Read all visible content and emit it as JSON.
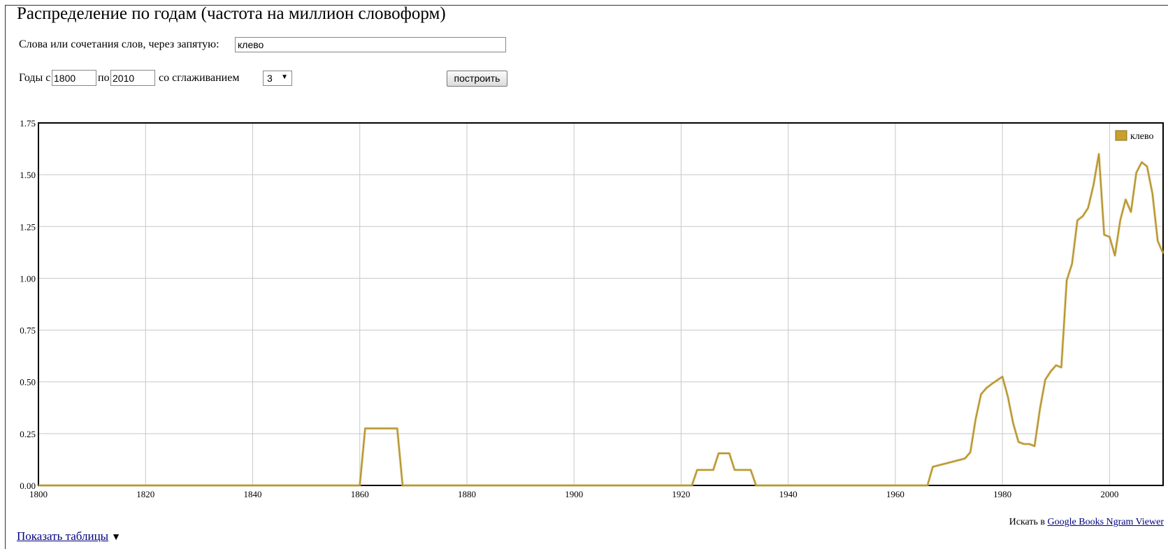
{
  "page": {
    "title": "Распределение по годам (частота на миллион словоформ)"
  },
  "form": {
    "words_label": "Слова или сочетания слов, через запятую:",
    "words_value": "клево",
    "years_from_label": "Годы с",
    "year_from": "1800",
    "years_to_label": "по",
    "year_to": "2010",
    "smoothing_label": "со сглаживанием",
    "smoothing_value": "3",
    "build_button": "построить"
  },
  "footer": {
    "search_prefix": "Искать в",
    "search_link": "Google Books Ngram Viewer",
    "show_tables": "Показать таблицы"
  },
  "colors": {
    "series": "#b8962e",
    "legend_box": "#c9a02a",
    "grid": "#c8c8c8",
    "axis": "#000000"
  },
  "chart_data": {
    "type": "line",
    "title": "",
    "xlabel": "",
    "ylabel": "",
    "xlim": [
      1800,
      2010
    ],
    "ylim": [
      0,
      1.75
    ],
    "x_ticks": [
      "1800",
      "1820",
      "1840",
      "1860",
      "1880",
      "1900",
      "1920",
      "1940",
      "1960",
      "1980",
      "2000"
    ],
    "y_ticks": [
      "0.00",
      "0.25",
      "0.50",
      "0.75",
      "1.00",
      "1.25",
      "1.50",
      "1.75"
    ],
    "grid": true,
    "legend_position": "top-right",
    "series": [
      {
        "name": "клево",
        "points": [
          [
            1800,
            0.0
          ],
          [
            1860,
            0.0
          ],
          [
            1861,
            0.275
          ],
          [
            1867,
            0.275
          ],
          [
            1868,
            0.0
          ],
          [
            1922,
            0.0
          ],
          [
            1923,
            0.075
          ],
          [
            1926,
            0.075
          ],
          [
            1927,
            0.155
          ],
          [
            1929,
            0.155
          ],
          [
            1930,
            0.075
          ],
          [
            1933,
            0.075
          ],
          [
            1934,
            0.0
          ],
          [
            1966,
            0.0
          ],
          [
            1967,
            0.09
          ],
          [
            1970,
            0.11
          ],
          [
            1973,
            0.13
          ],
          [
            1974,
            0.16
          ],
          [
            1975,
            0.32
          ],
          [
            1976,
            0.44
          ],
          [
            1977,
            0.47
          ],
          [
            1978,
            0.49
          ],
          [
            1980,
            0.525
          ],
          [
            1981,
            0.43
          ],
          [
            1982,
            0.3
          ],
          [
            1983,
            0.21
          ],
          [
            1984,
            0.2
          ],
          [
            1985,
            0.2
          ],
          [
            1986,
            0.19
          ],
          [
            1987,
            0.37
          ],
          [
            1988,
            0.51
          ],
          [
            1989,
            0.55
          ],
          [
            1990,
            0.58
          ],
          [
            1991,
            0.57
          ],
          [
            1992,
            0.99
          ],
          [
            1993,
            1.07
          ],
          [
            1994,
            1.28
          ],
          [
            1995,
            1.3
          ],
          [
            1996,
            1.34
          ],
          [
            1997,
            1.45
          ],
          [
            1998,
            1.6
          ],
          [
            1999,
            1.21
          ],
          [
            2000,
            1.2
          ],
          [
            2001,
            1.11
          ],
          [
            2002,
            1.28
          ],
          [
            2003,
            1.38
          ],
          [
            2004,
            1.32
          ],
          [
            2005,
            1.51
          ],
          [
            2006,
            1.56
          ],
          [
            2007,
            1.54
          ],
          [
            2008,
            1.41
          ],
          [
            2009,
            1.18
          ],
          [
            2010,
            1.12
          ]
        ]
      }
    ]
  }
}
